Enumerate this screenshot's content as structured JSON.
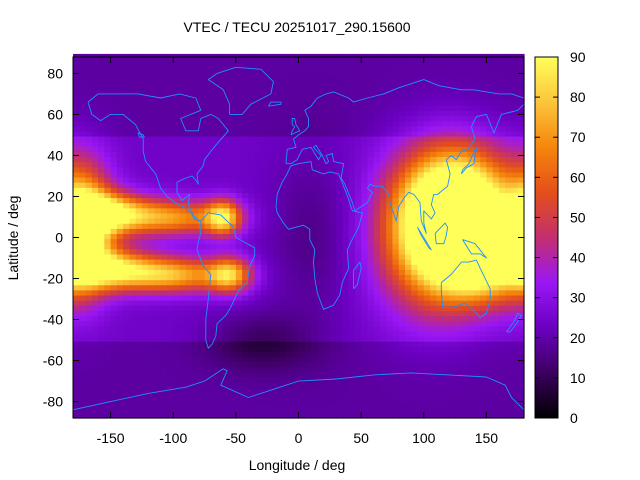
{
  "chart_data": {
    "type": "heatmap",
    "title": "VTEC / TECU 20251017_290.15600",
    "xlabel": "Longitude / deg",
    "ylabel": "Latitude / deg",
    "xlim": [
      -180,
      180
    ],
    "ylim": [
      -88,
      88
    ],
    "x_ticks": [
      -150,
      -100,
      -50,
      0,
      50,
      100,
      150
    ],
    "y_ticks": [
      80,
      60,
      40,
      20,
      0,
      -20,
      -40,
      -60,
      -80
    ],
    "colorbar": {
      "range": [
        0,
        90
      ],
      "ticks": [
        0,
        10,
        20,
        30,
        40,
        50,
        60,
        70,
        80,
        90
      ],
      "colormap": "gnuplot-rgbformulae-7-5-15",
      "stops": [
        "#000000",
        "#3c0060",
        "#6a00c0",
        "#9a17f5",
        "#c32f6e",
        "#e44f1b",
        "#f5860b",
        "#fcc53b",
        "#ffff5a"
      ]
    },
    "grid": false,
    "overlay": "coastlines",
    "coastline_color": "#1e90ff",
    "field": {
      "description_units": "TECU",
      "background_low_lat": 24,
      "background_high_lat": 19,
      "features": [
        {
          "lon": 130,
          "lat": 12,
          "peak": 88,
          "spread_lon": 28,
          "spread_lat": 20
        },
        {
          "lon": 108,
          "lat": 2,
          "peak": 60,
          "spread_lon": 30,
          "spread_lat": 25
        },
        {
          "lon": 150,
          "lat": -15,
          "peak": 45,
          "spread_lon": 25,
          "spread_lat": 12
        },
        {
          "lon": -172,
          "lat": 5,
          "peak": 70,
          "spread_lon": 16,
          "spread_lat": 20
        },
        {
          "lon": -150,
          "lat": 12,
          "peak": 54,
          "spread_lon": 22,
          "spread_lat": 7
        },
        {
          "lon": -150,
          "lat": -15,
          "peak": 52,
          "spread_lon": 25,
          "spread_lat": 7
        },
        {
          "lon": -100,
          "lat": -18,
          "peak": 50,
          "spread_lon": 30,
          "spread_lat": 6
        },
        {
          "lon": -100,
          "lat": 10,
          "peak": 45,
          "spread_lon": 30,
          "spread_lat": 6
        },
        {
          "lon": -60,
          "lat": 10,
          "peak": 52,
          "spread_lon": 10,
          "spread_lat": 6
        },
        {
          "lon": -55,
          "lat": -18,
          "peak": 48,
          "spread_lon": 12,
          "spread_lat": 6
        },
        {
          "lon": -30,
          "lat": -50,
          "peak": -12,
          "spread_lon": 30,
          "spread_lat": 10
        },
        {
          "lon": 10,
          "lat": 0,
          "peak": -8,
          "spread_lon": 25,
          "spread_lat": 30
        }
      ]
    }
  }
}
